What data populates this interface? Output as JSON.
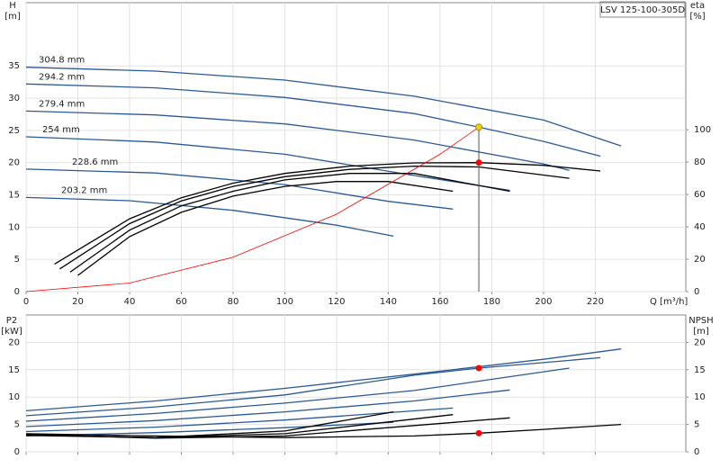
{
  "chart_data": [
    {
      "type": "line",
      "y_label": "H",
      "y_unit": "[m]",
      "y2_label": "eta",
      "y2_unit": "[%]",
      "x_label": "Q [m³/h]",
      "annotation": "LSV 125-100-305D",
      "grid": true,
      "xlim": [
        0,
        255
      ],
      "xticks": [
        0,
        20,
        40,
        60,
        80,
        100,
        120,
        140,
        160,
        180,
        200,
        220
      ],
      "ylim": [
        0,
        44.8
      ],
      "yticks": [
        0,
        5,
        10,
        15,
        20,
        25,
        30,
        35
      ],
      "y2lim": [
        0,
        178.5
      ],
      "y2ticks": [
        0,
        20,
        40,
        60,
        80,
        100
      ],
      "series": [
        {
          "name": "304.8 mm",
          "color": "#2a5a95",
          "x": [
            0,
            50,
            100,
            150,
            200,
            230
          ],
          "values": [
            34.8,
            34.2,
            32.8,
            30.3,
            26.6,
            22.6
          ]
        },
        {
          "name": "294.2 mm",
          "color": "#2a5a95",
          "x": [
            0,
            50,
            100,
            150,
            175,
            200,
            222
          ],
          "values": [
            32.2,
            31.6,
            30.1,
            27.6,
            25.5,
            23.3,
            21.0
          ]
        },
        {
          "name": "279.4 mm",
          "color": "#2a5a95",
          "x": [
            0,
            50,
            100,
            150,
            200,
            210
          ],
          "values": [
            28.0,
            27.4,
            26.0,
            23.5,
            19.8,
            18.8
          ]
        },
        {
          "name": "254 mm",
          "color": "#2a5a95",
          "x": [
            0,
            50,
            100,
            150,
            187
          ],
          "values": [
            24.0,
            23.2,
            21.3,
            18.0,
            15.7
          ]
        },
        {
          "name": "228.6 mm",
          "color": "#2a5a95",
          "x": [
            0,
            50,
            100,
            140,
            165
          ],
          "values": [
            19.0,
            18.4,
            16.6,
            14.0,
            12.8
          ]
        },
        {
          "name": "203.2 mm",
          "color": "#2a5a95",
          "x": [
            0,
            40,
            80,
            120,
            142
          ],
          "values": [
            14.6,
            14.1,
            12.6,
            10.3,
            8.6
          ]
        },
        {
          "color": "#000000",
          "axis": "y2",
          "x": [
            11,
            40,
            60,
            80,
            100,
            125,
            150,
            175,
            200,
            222
          ],
          "values": [
            17,
            45,
            58,
            67,
            73,
            77.5,
            79.5,
            79.7,
            78,
            74.5
          ]
        },
        {
          "color": "#000000",
          "axis": "y2",
          "x": [
            13,
            40,
            60,
            80,
            100,
            125,
            150,
            175,
            210
          ],
          "values": [
            14,
            42,
            56,
            65,
            71,
            75.5,
            77.5,
            77,
            70
          ]
        },
        {
          "color": "#000000",
          "axis": "y2",
          "x": [
            17,
            40,
            60,
            80,
            100,
            125,
            150,
            187
          ],
          "values": [
            12,
            38,
            53,
            62,
            69,
            73,
            73,
            62
          ]
        },
        {
          "color": "#000000",
          "axis": "y2",
          "x": [
            20,
            40,
            60,
            80,
            100,
            120,
            140,
            165
          ],
          "values": [
            10,
            34,
            49,
            59,
            65,
            68,
            68,
            62
          ]
        },
        {
          "color": "#ff0000",
          "x": [
            0,
            40,
            80,
            120,
            160,
            175
          ],
          "values": [
            0,
            1.33,
            5.33,
            12,
            21.3,
            25.5
          ]
        }
      ],
      "points": [
        {
          "color": "#f5d000",
          "x": 175,
          "value": 25.5
        },
        {
          "color": "#ff0000",
          "axis": "y2",
          "x": 175,
          "value": 79.7
        }
      ]
    },
    {
      "type": "line",
      "y_label": "P2",
      "y_unit": "[kW]",
      "y2_label": "NPSH",
      "y2_unit": "[m]",
      "grid": true,
      "xlim": [
        0,
        255
      ],
      "ylim": [
        0,
        25
      ],
      "yticks": [
        0,
        5,
        10,
        15,
        20
      ],
      "y2lim": [
        0,
        25
      ],
      "y2ticks": [
        0,
        5,
        10,
        15,
        20
      ],
      "series": [
        {
          "color": "#2a5a95",
          "x": [
            0,
            50,
            100,
            150,
            200,
            230
          ],
          "values": [
            7.5,
            9.3,
            11.6,
            14.2,
            16.9,
            18.8
          ]
        },
        {
          "color": "#2a5a95",
          "x": [
            0,
            50,
            100,
            150,
            175,
            200,
            222
          ],
          "values": [
            6.6,
            8.2,
            10.4,
            14.0,
            15.3,
            16.3,
            17.2
          ]
        },
        {
          "color": "#2a5a95",
          "x": [
            0,
            50,
            100,
            150,
            210
          ],
          "values": [
            5.6,
            7.0,
            8.9,
            11.2,
            15.3
          ]
        },
        {
          "color": "#2a5a95",
          "x": [
            0,
            50,
            100,
            150,
            187
          ],
          "values": [
            4.6,
            5.7,
            7.3,
            9.3,
            11.3
          ]
        },
        {
          "color": "#2a5a95",
          "x": [
            0,
            50,
            100,
            165
          ],
          "values": [
            3.7,
            4.5,
            5.8,
            8.0
          ]
        },
        {
          "color": "#2a5a95",
          "x": [
            0,
            50,
            100,
            142
          ],
          "values": [
            2.9,
            3.5,
            4.4,
            5.4
          ]
        },
        {
          "color": "#000000",
          "axis": "y2",
          "x": [
            0,
            50,
            100,
            150,
            175,
            200,
            230
          ],
          "values": [
            3.3,
            2.9,
            2.6,
            2.9,
            3.4,
            4.1,
            5.0
          ]
        },
        {
          "color": "#000000",
          "axis": "y2",
          "x": [
            0,
            50,
            100,
            142
          ],
          "values": [
            3.0,
            2.6,
            3.8,
            7.3
          ]
        },
        {
          "color": "#000000",
          "axis": "y2",
          "x": [
            0,
            50,
            100,
            165
          ],
          "values": [
            3.1,
            2.6,
            3.3,
            6.8
          ]
        },
        {
          "color": "#000000",
          "axis": "y2",
          "x": [
            0,
            50,
            100,
            187
          ],
          "values": [
            3.2,
            2.5,
            2.9,
            6.2
          ]
        }
      ],
      "points": [
        {
          "color": "#ff0000",
          "x": 175,
          "value": 15.3
        },
        {
          "color": "#ff0000",
          "axis": "y2",
          "x": 175,
          "value": 3.4
        }
      ]
    }
  ]
}
